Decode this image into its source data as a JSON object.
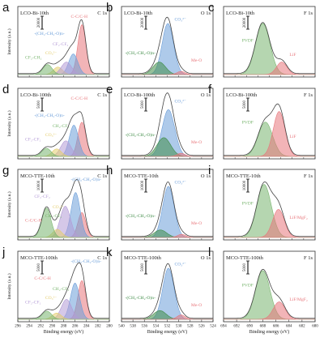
{
  "colors": {
    "red": "#e8777c",
    "blue": "#6c9ed9",
    "purple": "#b39ad6",
    "yellow": "#e4cd6e",
    "green": "#79b56f",
    "darkgreen": "#3f8c47",
    "envelope": "#444444"
  },
  "chart_data": [
    {
      "type": "area",
      "letter": "a",
      "sample": "LCO-Bi-10th",
      "region": "C 1s",
      "scale": "20000",
      "ylabel": "Intensity (a.u.)",
      "xlabel": "",
      "xlim": [
        296,
        280
      ],
      "grid": false,
      "xticks": [],
      "labels": [
        "C-C/C-H",
        "-(CH₂-CH₂-O)n-",
        "CF₂-CH₂",
        "CO₃²⁻",
        "CF₂-CF₂"
      ],
      "series": [
        {
          "name": "C-C/C-H",
          "center": 284.8,
          "height": 0.8,
          "width": 0.7
        },
        {
          "name": "-(CH₂-CH₂-O)n-",
          "center": 286.3,
          "height": 0.33,
          "width": 0.8
        },
        {
          "name": "CO₃²⁻",
          "center": 289.0,
          "height": 0.12,
          "width": 0.8
        },
        {
          "name": "CF₂-CF₂",
          "center": 287.5,
          "height": 0.2,
          "width": 0.9
        },
        {
          "name": "CF₂-CH₂",
          "center": 290.8,
          "height": 0.16,
          "width": 0.8
        }
      ]
    },
    {
      "type": "area",
      "letter": "b",
      "sample": "LCO-Bi-10th",
      "region": "O 1s",
      "scale": "20000",
      "xlim": [
        540,
        524
      ],
      "grid": false,
      "xticks": [],
      "labels": [
        "CO₃²⁻",
        "-(CH₂-CH₂-O)n-",
        "Me-O"
      ],
      "series": [
        {
          "name": "CO₃²⁻",
          "center": 531.9,
          "height": 0.82,
          "width": 1.0
        },
        {
          "name": "-(CH₂-CH₂-O)n-",
          "center": 533.4,
          "height": 0.2,
          "width": 1.1
        },
        {
          "name": "Me-O",
          "center": 529.6,
          "height": 0.05,
          "width": 0.7
        }
      ]
    },
    {
      "type": "area",
      "letter": "c",
      "sample": "LCO-Bi-10th",
      "region": "F 1s",
      "scale": "20000",
      "xlim": [
        694,
        680
      ],
      "grid": false,
      "xticks": [],
      "labels": [
        "PVDF",
        "LiF"
      ],
      "series": [
        {
          "name": "PVDF",
          "center": 688.0,
          "height": 0.82,
          "width": 1.1
        },
        {
          "name": "LiF",
          "center": 685.1,
          "height": 0.2,
          "width": 0.8
        }
      ]
    },
    {
      "type": "area",
      "letter": "d",
      "sample": "LCO-Bi-100th",
      "region": "C 1s",
      "scale": "5000",
      "xlim": [
        296,
        280
      ],
      "grid": false,
      "xticks": [],
      "labels": [
        "C-C/C-H",
        "-(CH₂-CH₂-O)n-",
        "CF₂-CF₂",
        "CO₃²⁻",
        "CH₂-CF₂"
      ],
      "series": [
        {
          "name": "C-C/C-H",
          "center": 284.8,
          "height": 0.55,
          "width": 0.7
        },
        {
          "name": "-(CH₂-CH₂-O)n-",
          "center": 286.2,
          "height": 0.5,
          "width": 0.8
        },
        {
          "name": "CF₂-CF₂",
          "center": 287.6,
          "height": 0.25,
          "width": 0.9
        },
        {
          "name": "CO₃²⁻",
          "center": 289.2,
          "height": 0.12,
          "width": 0.8
        },
        {
          "name": "CH₂-CF₂",
          "center": 291.0,
          "height": 0.13,
          "width": 0.8
        }
      ]
    },
    {
      "type": "area",
      "letter": "e",
      "sample": "LCO-Bi-100th",
      "region": "O 1s",
      "scale": "5000",
      "xlim": [
        540,
        524
      ],
      "grid": false,
      "xticks": [],
      "labels": [
        "CO₃²⁻",
        "-(CH₂-CH₂-O)n-",
        "Me-O"
      ],
      "series": [
        {
          "name": "CO₃²⁻",
          "center": 531.8,
          "height": 0.75,
          "width": 1.1
        },
        {
          "name": "-(CH₂-CH₂-O)n-",
          "center": 532.6,
          "height": 0.3,
          "width": 1.2
        },
        {
          "name": "Me-O",
          "center": 529.6,
          "height": 0.05,
          "width": 0.7
        }
      ]
    },
    {
      "type": "area",
      "letter": "f",
      "sample": "LCO-Bi-100th",
      "region": "F 1s",
      "scale": "5000",
      "xlim": [
        694,
        680
      ],
      "grid": false,
      "xticks": [],
      "labels": [
        "PVDF",
        "LiF"
      ],
      "series": [
        {
          "name": "PVDF",
          "center": 687.6,
          "height": 0.55,
          "width": 1.1
        },
        {
          "name": "LiF",
          "center": 685.5,
          "height": 0.72,
          "width": 0.9
        }
      ]
    },
    {
      "type": "area",
      "letter": "g",
      "sample": "MCO-TTE-10th",
      "region": "C 1s",
      "scale": "10000",
      "xlim": [
        296,
        280
      ],
      "grid": false,
      "xticks": [],
      "labels": [
        "-(CH₂-CH₂-O)n-",
        "CF₂-CF₂",
        "C-C/C-H",
        "CH₂-CF₂",
        "CO₃²⁻"
      ],
      "series": [
        {
          "name": "C-C/C-H",
          "center": 284.8,
          "height": 0.4,
          "width": 0.7
        },
        {
          "name": "-(CH₂-CH₂-O)n-",
          "center": 285.9,
          "height": 0.72,
          "width": 0.8
        },
        {
          "name": "CF₂-CF₂",
          "center": 287.7,
          "height": 0.5,
          "width": 0.9
        },
        {
          "name": "CO₃²⁻",
          "center": 289.1,
          "height": 0.13,
          "width": 0.8
        },
        {
          "name": "CH₂-CF₂",
          "center": 291.0,
          "height": 0.47,
          "width": 0.8
        }
      ]
    },
    {
      "type": "area",
      "letter": "h",
      "sample": "MCO-TTE-10th",
      "region": "O 1s",
      "scale": "10000",
      "xlim": [
        540,
        524
      ],
      "grid": false,
      "xticks": [],
      "labels": [
        "CO₃²⁻",
        "-(CH₂-CH₂-O)n-",
        "Me-O"
      ],
      "series": [
        {
          "name": "CO₃²⁻",
          "center": 531.8,
          "height": 0.82,
          "width": 1.0
        },
        {
          "name": "-(CH₂-CH₂-O)n-",
          "center": 533.2,
          "height": 0.12,
          "width": 1.1
        },
        {
          "name": "Me-O",
          "center": 529.5,
          "height": 0.05,
          "width": 0.7
        }
      ]
    },
    {
      "type": "area",
      "letter": "i",
      "sample": "MCO-TTE-10th",
      "region": "F 1s",
      "scale": "10000",
      "xlim": [
        694,
        680
      ],
      "grid": false,
      "xticks": [],
      "labels": [
        "PVDF",
        "LiF/MgF₂"
      ],
      "series": [
        {
          "name": "PVDF",
          "center": 687.8,
          "height": 0.85,
          "width": 1.1
        },
        {
          "name": "LiF/MgF₂",
          "center": 685.6,
          "height": 0.45,
          "width": 0.9
        }
      ]
    },
    {
      "type": "area",
      "letter": "j",
      "sample": "MCO-TTE-100th",
      "region": "C 1s",
      "scale": "5000",
      "xlim": [
        296,
        280
      ],
      "grid": false,
      "xticks": [
        "296",
        "294",
        "292",
        "290",
        "288",
        "286",
        "284",
        "282",
        "280"
      ],
      "xlabel": "Binding energy (eV)",
      "labels": [
        "-(CH₂-CH₂-O)n-",
        "C-C/C-H",
        "CF₂-CF₂",
        "CO₃²⁻",
        "CH₂-CF₂"
      ],
      "series": [
        {
          "name": "C-C/C-H",
          "center": 284.8,
          "height": 0.62,
          "width": 0.7
        },
        {
          "name": "-(CH₂-CH₂-O)n-",
          "center": 286.0,
          "height": 0.58,
          "width": 0.8
        },
        {
          "name": "CF₂-CF₂",
          "center": 287.5,
          "height": 0.32,
          "width": 0.9
        },
        {
          "name": "CO₃²⁻",
          "center": 289.2,
          "height": 0.1,
          "width": 0.8
        },
        {
          "name": "CH₂-CF₂",
          "center": 290.9,
          "height": 0.13,
          "width": 0.8
        }
      ]
    },
    {
      "type": "area",
      "letter": "k",
      "sample": "MCO-TTE-100th",
      "region": "O 1s",
      "scale": "5000",
      "xlim": [
        540,
        524
      ],
      "grid": false,
      "xticks": [
        "540",
        "538",
        "536",
        "534",
        "532",
        "530",
        "528",
        "526",
        "524"
      ],
      "xlabel": "Binding energy (eV)",
      "labels": [
        "CO₃²⁻",
        "-(CH₂-CH₂-O)n-",
        "Me-O"
      ],
      "series": [
        {
          "name": "CO₃²⁻",
          "center": 531.8,
          "height": 0.82,
          "width": 1.0
        },
        {
          "name": "-(CH₂-CH₂-O)n-",
          "center": 533.3,
          "height": 0.14,
          "width": 1.1
        },
        {
          "name": "Me-O",
          "center": 529.6,
          "height": 0.07,
          "width": 0.7
        }
      ]
    },
    {
      "type": "area",
      "letter": "l",
      "sample": "MCO-TTE-100th",
      "region": "F 1s",
      "scale": "5000",
      "xlim": [
        694,
        680
      ],
      "grid": false,
      "xticks": [
        "694",
        "692",
        "690",
        "688",
        "686",
        "684",
        "682",
        "680"
      ],
      "xlabel": "Binding energy (eV)",
      "labels": [
        "PVDF",
        "LiF/MgF₂"
      ],
      "series": [
        {
          "name": "PVDF",
          "center": 688.0,
          "height": 0.78,
          "width": 1.1
        },
        {
          "name": "LiF/MgF₂",
          "center": 685.5,
          "height": 0.28,
          "width": 0.9
        }
      ]
    }
  ]
}
